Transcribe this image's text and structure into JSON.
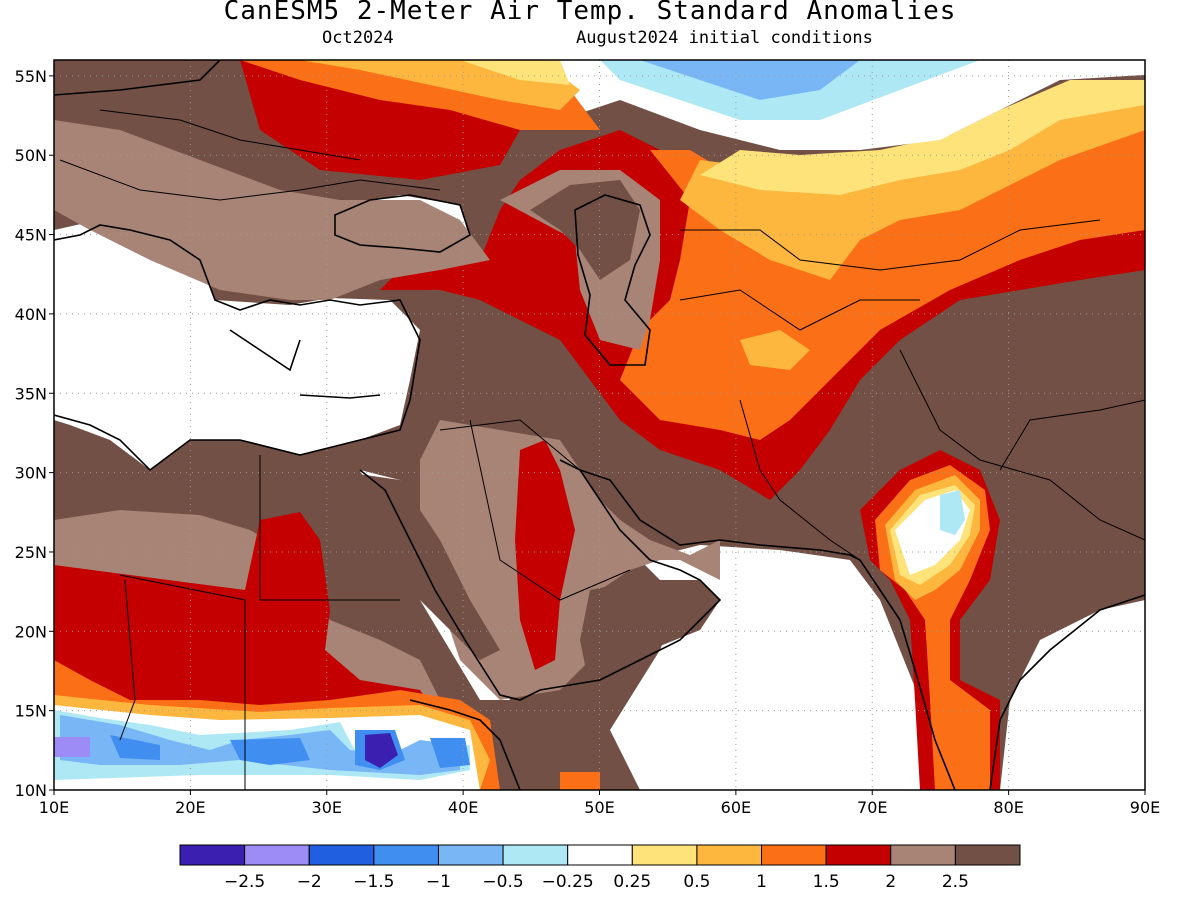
{
  "header": {
    "title": "CanESM5 2-Meter Air Temp. Standard Anomalies",
    "target_month": "Oct2024",
    "init": "August2024 initial conditions"
  },
  "map": {
    "lon_range": [
      10,
      90
    ],
    "lat_range": [
      10,
      56
    ],
    "lat_ticks": [
      {
        "v": 55,
        "label": "55N"
      },
      {
        "v": 50,
        "label": "50N"
      },
      {
        "v": 45,
        "label": "45N"
      },
      {
        "v": 40,
        "label": "40N"
      },
      {
        "v": 35,
        "label": "35N"
      },
      {
        "v": 30,
        "label": "30N"
      },
      {
        "v": 25,
        "label": "25N"
      },
      {
        "v": 20,
        "label": "20N"
      },
      {
        "v": 15,
        "label": "15N"
      },
      {
        "v": 10,
        "label": "10N"
      }
    ],
    "lon_ticks": [
      {
        "v": 10,
        "label": "10E"
      },
      {
        "v": 20,
        "label": "20E"
      },
      {
        "v": 30,
        "label": "30E"
      },
      {
        "v": 40,
        "label": "40E"
      },
      {
        "v": 50,
        "label": "50E"
      },
      {
        "v": 60,
        "label": "60E"
      },
      {
        "v": 70,
        "label": "70E"
      },
      {
        "v": 80,
        "label": "80E"
      },
      {
        "v": 90,
        "label": "90E"
      }
    ],
    "grid": "dotted"
  },
  "colorbar": {
    "colors": [
      "#3a1fb0",
      "#9d8cf5",
      "#1f5fe0",
      "#3f8ef0",
      "#78b6f5",
      "#aee8f5",
      "#ffffff",
      "#fde37a",
      "#fdb63e",
      "#fb6f16",
      "#c40000",
      "#a88476",
      "#735046"
    ],
    "labels": [
      "-2.5",
      "-2",
      "-1.5",
      "-1",
      "-0.5",
      "-0.25",
      "0.25",
      "0.5",
      "1",
      "1.5",
      "2",
      "2.5"
    ]
  }
}
